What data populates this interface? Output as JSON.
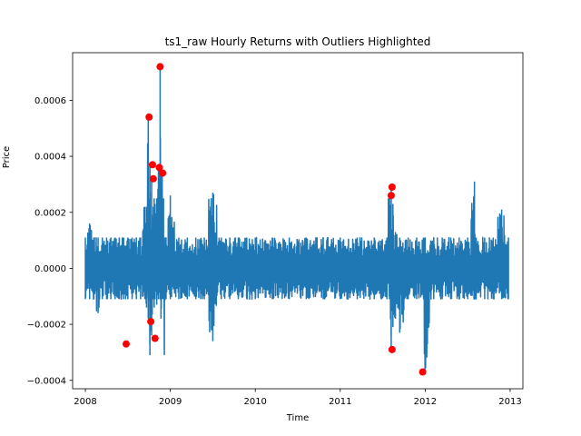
{
  "chart_data": {
    "type": "line",
    "title": "ts1_raw Hourly Returns with Outliers Highlighted",
    "xlabel": "Time",
    "ylabel": "Price",
    "xlim": [
      2007.85,
      2013.15
    ],
    "ylim": [
      -0.00043,
      0.00077
    ],
    "x_ticks": [
      2008,
      2009,
      2010,
      2011,
      2012,
      2013
    ],
    "x_tick_labels": [
      "2008",
      "2009",
      "2010",
      "2011",
      "2012",
      "2013"
    ],
    "y_ticks": [
      -0.0004,
      -0.0002,
      0.0,
      0.0002,
      0.0004,
      0.0006
    ],
    "y_tick_labels": [
      "−0.0004",
      "−0.0002",
      "0.0000",
      "0.0002",
      "0.0004",
      "0.0006"
    ],
    "grid": false,
    "series": [
      {
        "color": "#1f77b4",
        "x": [
          2008.0,
          2008.05,
          2008.1,
          2008.15,
          2008.2,
          2008.25,
          2008.3,
          2008.35,
          2008.4,
          2008.45,
          2008.5,
          2008.55,
          2008.6,
          2008.65,
          2008.7,
          2008.72,
          2008.74,
          2008.75,
          2008.76,
          2008.78,
          2008.8,
          2008.81,
          2008.82,
          2008.84,
          2008.86,
          2008.88,
          2008.89,
          2008.9,
          2008.92,
          2008.93,
          2008.95,
          2009.0,
          2009.1,
          2009.2,
          2009.3,
          2009.4,
          2009.5,
          2009.6,
          2009.7,
          2009.8,
          2009.9,
          2010.0,
          2010.2,
          2010.4,
          2010.6,
          2010.8,
          2011.0,
          2011.2,
          2011.4,
          2011.55,
          2011.58,
          2011.6,
          2011.62,
          2011.65,
          2011.7,
          2011.8,
          2011.9,
          2011.98,
          2012.0,
          2012.1,
          2012.2,
          2012.3,
          2012.4,
          2012.5,
          2012.58,
          2012.6,
          2012.7,
          2012.8,
          2012.9,
          2012.98
        ],
        "y_high": [
          0.00011,
          0.00016,
          0.00011,
          0.00011,
          0.00011,
          0.00011,
          0.00011,
          0.00011,
          0.00011,
          0.00011,
          0.00011,
          0.00011,
          0.00011,
          0.00011,
          0.00022,
          0.00022,
          0.00054,
          0.00025,
          0.00037,
          0.00032,
          0.00022,
          0.00025,
          0.00023,
          0.00025,
          0.00036,
          0.00072,
          0.00022,
          0.00034,
          0.00025,
          0.00011,
          0.00011,
          0.00026,
          0.00011,
          0.00011,
          0.00011,
          0.00011,
          0.00027,
          0.00011,
          0.00011,
          0.00011,
          0.00011,
          0.00011,
          0.00011,
          0.00011,
          0.00011,
          0.00011,
          0.00011,
          0.00011,
          0.00011,
          0.00011,
          0.00026,
          0.00029,
          0.00023,
          0.00013,
          0.00011,
          0.00011,
          0.00011,
          0.00011,
          0.00011,
          0.00011,
          0.00011,
          0.00011,
          0.00011,
          0.00011,
          0.00031,
          0.00011,
          0.00011,
          0.00011,
          0.00021,
          0.00011
        ],
        "y_low": [
          -0.00011,
          -0.00011,
          -0.00011,
          -0.00016,
          -0.00011,
          -0.00011,
          -0.00011,
          -0.00011,
          -0.00011,
          -0.00011,
          -0.00011,
          -0.00011,
          -0.00011,
          -0.00011,
          -0.00011,
          -0.00014,
          -0.00018,
          -0.00011,
          -0.00031,
          -0.00024,
          -0.00011,
          -0.00014,
          -0.00011,
          -0.00013,
          -0.00011,
          -0.00011,
          -0.00018,
          -0.00011,
          -0.00011,
          -0.00031,
          -0.00011,
          -0.00011,
          -0.00011,
          -0.00011,
          -0.00011,
          -0.00011,
          -0.00026,
          -0.00011,
          -0.00011,
          -0.00011,
          -0.00011,
          -0.00011,
          -0.00011,
          -0.00011,
          -0.00011,
          -0.00011,
          -0.00011,
          -0.00011,
          -0.00011,
          -0.00011,
          -0.00011,
          -0.00028,
          -0.00021,
          -0.00018,
          -0.00023,
          -0.00011,
          -0.00011,
          -0.00011,
          -0.00036,
          -0.00011,
          -0.00011,
          -0.00011,
          -0.00011,
          -0.00011,
          -0.00011,
          -0.00011,
          -0.00011,
          -0.00011,
          -0.00011,
          -0.00011
        ]
      },
      {
        "color": "#ff0000",
        "marker": "circle",
        "x": [
          2008.48,
          2008.75,
          2008.77,
          2008.79,
          2008.8,
          2008.82,
          2008.87,
          2008.88,
          2008.91,
          2011.6,
          2011.61,
          2011.61,
          2011.97
        ],
        "y": [
          -0.00027,
          0.00054,
          -0.00019,
          0.00037,
          0.00032,
          -0.00025,
          0.00036,
          0.00072,
          0.00034,
          0.00026,
          0.00029,
          -0.00029,
          -0.00037
        ]
      }
    ]
  }
}
